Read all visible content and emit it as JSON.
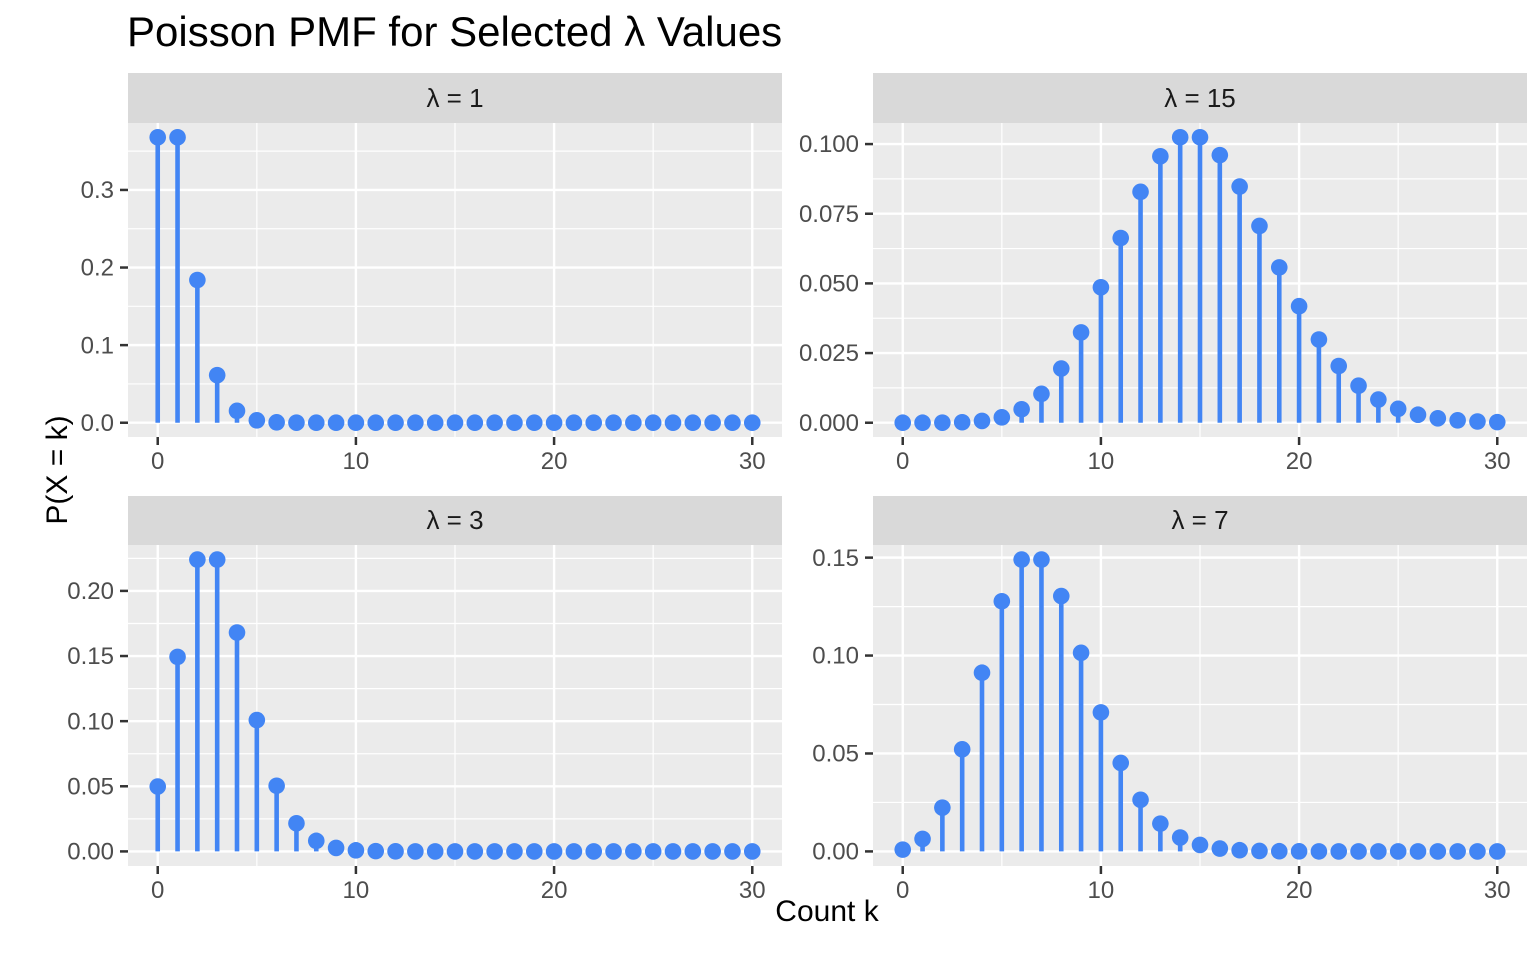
{
  "title": "Poisson PMF for Selected λ Values",
  "x_axis_title": "Count k",
  "y_axis_title": "P(X = k)",
  "colors": {
    "point": "#4285F4",
    "stem": "#4285F4",
    "panel_bg": "#EBEBEB",
    "strip_bg": "#D9D9D9",
    "grid": "#FFFFFF",
    "tick_mark": "#333333",
    "tick_label": "#4D4D4D",
    "text": "#000000"
  },
  "chart_data": {
    "type": "scatter",
    "subtype": "stem-lollipop, faceted 2x2 small multiples",
    "title": "Poisson PMF for Selected λ Values",
    "xlabel": "Count k",
    "ylabel": "P(X = k)",
    "grid": "major and minor white gridlines on grey panel",
    "facet_grid_order": [
      [
        "λ = 1",
        "λ = 15"
      ],
      [
        "λ = 3",
        "λ = 7"
      ]
    ],
    "x": [
      0,
      1,
      2,
      3,
      4,
      5,
      6,
      7,
      8,
      9,
      10,
      11,
      12,
      13,
      14,
      15,
      16,
      17,
      18,
      19,
      20,
      21,
      22,
      23,
      24,
      25,
      26,
      27,
      28,
      29,
      30
    ],
    "xlim": [
      -1.5,
      31.5
    ],
    "x_ticks": {
      "major": [
        0,
        10,
        20,
        30
      ],
      "minor": [
        5,
        15,
        25
      ],
      "labels": [
        "0",
        "10",
        "20",
        "30"
      ]
    },
    "facets": [
      {
        "label": "λ = 1",
        "lambda": 1,
        "ylim": [
          -0.01839,
          0.38627
        ],
        "y_ticks": {
          "major": [
            0.0,
            0.1,
            0.2,
            0.3
          ],
          "labels": [
            "0.0",
            "0.1",
            "0.2",
            "0.3"
          ],
          "minor": [
            0.05,
            0.15,
            0.25,
            0.35
          ]
        },
        "values": [
          0.36788,
          0.36788,
          0.18394,
          0.06131,
          0.01533,
          0.00307,
          0.00051,
          7e-05,
          1e-05,
          0,
          0,
          0,
          0,
          0,
          0,
          0,
          0,
          0,
          0,
          0,
          0,
          0,
          0,
          0,
          0,
          0,
          0,
          0,
          0,
          0,
          0
        ]
      },
      {
        "label": "λ = 15",
        "lambda": 15,
        "ylim": [
          -0.00512,
          0.10756
        ],
        "y_ticks": {
          "major": [
            0.0,
            0.025,
            0.05,
            0.075,
            0.1
          ],
          "labels": [
            "0.000",
            "0.025",
            "0.050",
            "0.075",
            "0.100"
          ],
          "minor": [
            0.0125,
            0.0375,
            0.0625,
            0.0875
          ]
        },
        "values": [
          0,
          0,
          3e-05,
          0.00017,
          0.00065,
          0.00194,
          0.00484,
          0.01037,
          0.01944,
          0.03241,
          0.04861,
          0.06629,
          0.08286,
          0.09561,
          0.10244,
          0.10244,
          0.09603,
          0.08474,
          0.07061,
          0.05575,
          0.04181,
          0.02986,
          0.02036,
          0.01328,
          0.0083,
          0.00498,
          0.00287,
          0.0016,
          0.00086,
          0.00044,
          0.00022
        ]
      },
      {
        "label": "λ = 3",
        "lambda": 3,
        "ylim": [
          -0.0112,
          0.23524
        ],
        "y_ticks": {
          "major": [
            0.0,
            0.05,
            0.1,
            0.15,
            0.2
          ],
          "labels": [
            "0.00",
            "0.05",
            "0.10",
            "0.15",
            "0.20"
          ],
          "minor": [
            0.025,
            0.075,
            0.125,
            0.175,
            0.225
          ]
        },
        "values": [
          0.04979,
          0.14936,
          0.22404,
          0.22404,
          0.16803,
          0.10082,
          0.05041,
          0.0216,
          0.0081,
          0.0027,
          0.00081,
          0.00022,
          6e-05,
          1e-05,
          0,
          0,
          0,
          0,
          0,
          0,
          0,
          0,
          0,
          0,
          0,
          0,
          0,
          0,
          0,
          0,
          0
        ]
      },
      {
        "label": "λ = 7",
        "lambda": 7,
        "ylim": [
          -0.00745,
          0.15645
        ],
        "y_ticks": {
          "major": [
            0.0,
            0.05,
            0.1,
            0.15
          ],
          "labels": [
            "0.00",
            "0.05",
            "0.10",
            "0.15"
          ],
          "minor": [
            0.025,
            0.075,
            0.125
          ]
        },
        "values": [
          0.00091,
          0.00638,
          0.02234,
          0.05213,
          0.09123,
          0.12772,
          0.149,
          0.149,
          0.13038,
          0.1014,
          0.07098,
          0.04517,
          0.02635,
          0.01419,
          0.00709,
          0.00331,
          0.00145,
          0.0006,
          0.00023,
          9e-05,
          3e-05,
          1e-05,
          0,
          0,
          0,
          0,
          0,
          0,
          0,
          0,
          0
        ]
      }
    ]
  }
}
